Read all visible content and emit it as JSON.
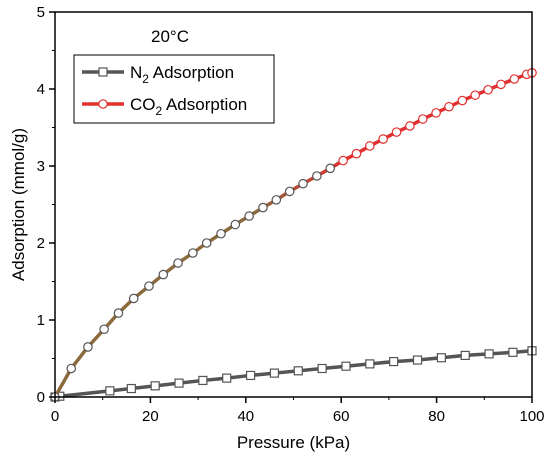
{
  "chart_data": {
    "type": "line",
    "xlabel": "Pressure (kPa)",
    "ylabel": "Adsorption (mmol/g)",
    "xlim": [
      0,
      100
    ],
    "ylim": [
      0,
      5
    ],
    "xticks": [
      0,
      20,
      40,
      60,
      80,
      100
    ],
    "yticks": [
      0,
      1,
      2,
      3,
      4,
      5
    ],
    "annotation": "20°C",
    "legend_position": "top-left",
    "series": [
      {
        "name": "N2 Adsorption",
        "name_base": "N",
        "name_sub": "2",
        "name_rest": " Adsorption",
        "line_color": "#555555",
        "marker": "square",
        "marker_fill": "#ffffff",
        "marker_edge": "#555555",
        "x": [
          0,
          1,
          11.5,
          16,
          21,
          26,
          31,
          36,
          41,
          46,
          51,
          56,
          61,
          66,
          71,
          76,
          81,
          86,
          91,
          96,
          100
        ],
        "y": [
          0,
          0.01,
          0.08,
          0.11,
          0.145,
          0.18,
          0.215,
          0.245,
          0.28,
          0.31,
          0.34,
          0.37,
          0.4,
          0.43,
          0.46,
          0.48,
          0.51,
          0.54,
          0.56,
          0.58,
          0.6
        ]
      },
      {
        "name": "CO2 Adsorption",
        "name_base": "CO",
        "name_sub": "2",
        "name_rest": " Adsorption",
        "line_color": "#8B6A3C",
        "line_color_end": "#E03030",
        "marker": "circle",
        "marker_fill": "#ffffff",
        "marker_edge": "#555555",
        "marker_edge_end": "#E03030",
        "x": [
          0,
          3.4,
          6.9,
          10.3,
          13.3,
          16.5,
          19.7,
          22.7,
          25.8,
          28.9,
          31.8,
          34.8,
          37.8,
          40.7,
          43.6,
          46.4,
          49.2,
          52.0,
          54.9,
          57.7,
          60.4,
          63.2,
          66.0,
          68.8,
          71.6,
          74.4,
          77.1,
          79.9,
          82.6,
          85.4,
          88.1,
          90.8,
          93.5,
          96.3,
          98.9,
          100
        ],
        "y": [
          0,
          0.37,
          0.65,
          0.88,
          1.09,
          1.28,
          1.44,
          1.59,
          1.74,
          1.87,
          2.0,
          2.12,
          2.24,
          2.35,
          2.46,
          2.56,
          2.67,
          2.77,
          2.87,
          2.97,
          3.07,
          3.16,
          3.26,
          3.35,
          3.44,
          3.52,
          3.61,
          3.69,
          3.77,
          3.85,
          3.92,
          3.99,
          4.06,
          4.13,
          4.19,
          4.21
        ]
      }
    ]
  }
}
